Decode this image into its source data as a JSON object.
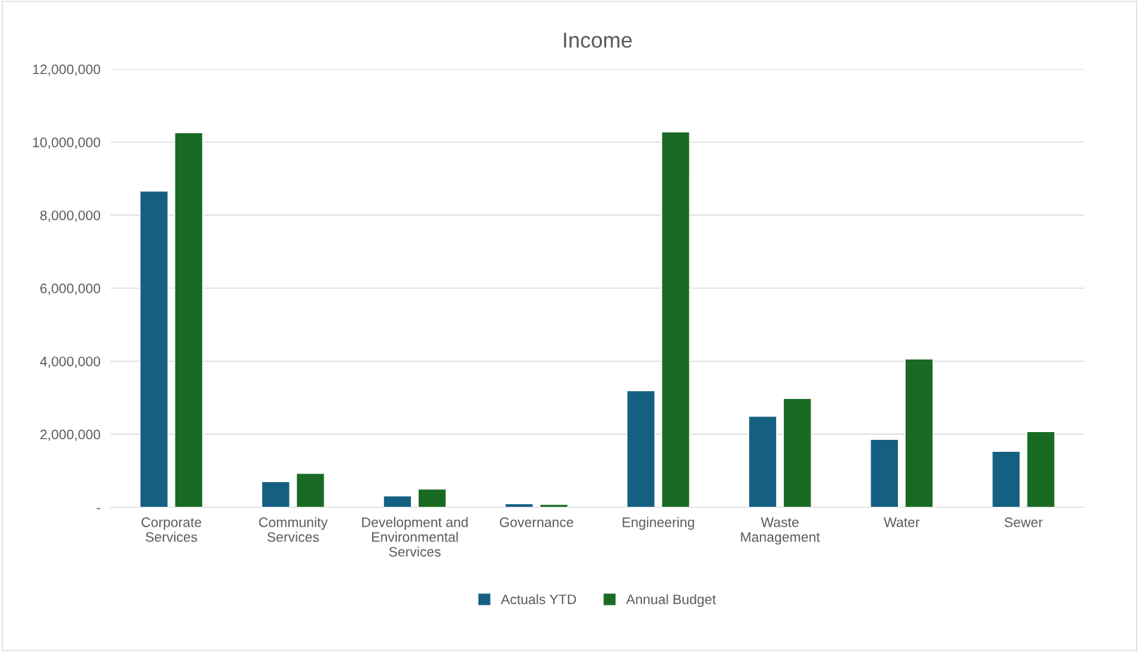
{
  "chart_data": {
    "type": "bar",
    "title": "Income",
    "categories": [
      "Corporate\nServices",
      "Community\nServices",
      "Development and\nEnvironmental\nServices",
      "Governance",
      "Engineering",
      "Waste\nManagement",
      "Water",
      "Sewer"
    ],
    "series": [
      {
        "name": "Actuals YTD",
        "color": "#156082",
        "values": [
          8660000,
          700000,
          310000,
          100000,
          3190000,
          2490000,
          1860000,
          1530000
        ]
      },
      {
        "name": "Annual Budget",
        "color": "#196b24",
        "values": [
          10260000,
          930000,
          500000,
          80000,
          10280000,
          2980000,
          4060000,
          2070000
        ]
      }
    ],
    "ylim": [
      0,
      12000000
    ],
    "yticks": [
      {
        "value": 0,
        "label": "-"
      },
      {
        "value": 2000000,
        "label": "2,000,000"
      },
      {
        "value": 4000000,
        "label": "4,000,000"
      },
      {
        "value": 6000000,
        "label": "6,000,000"
      },
      {
        "value": 8000000,
        "label": "8,000,000"
      },
      {
        "value": 10000000,
        "label": "10,000,000"
      },
      {
        "value": 12000000,
        "label": "12,000,000"
      }
    ],
    "grid": "y",
    "legend": "bottom"
  }
}
